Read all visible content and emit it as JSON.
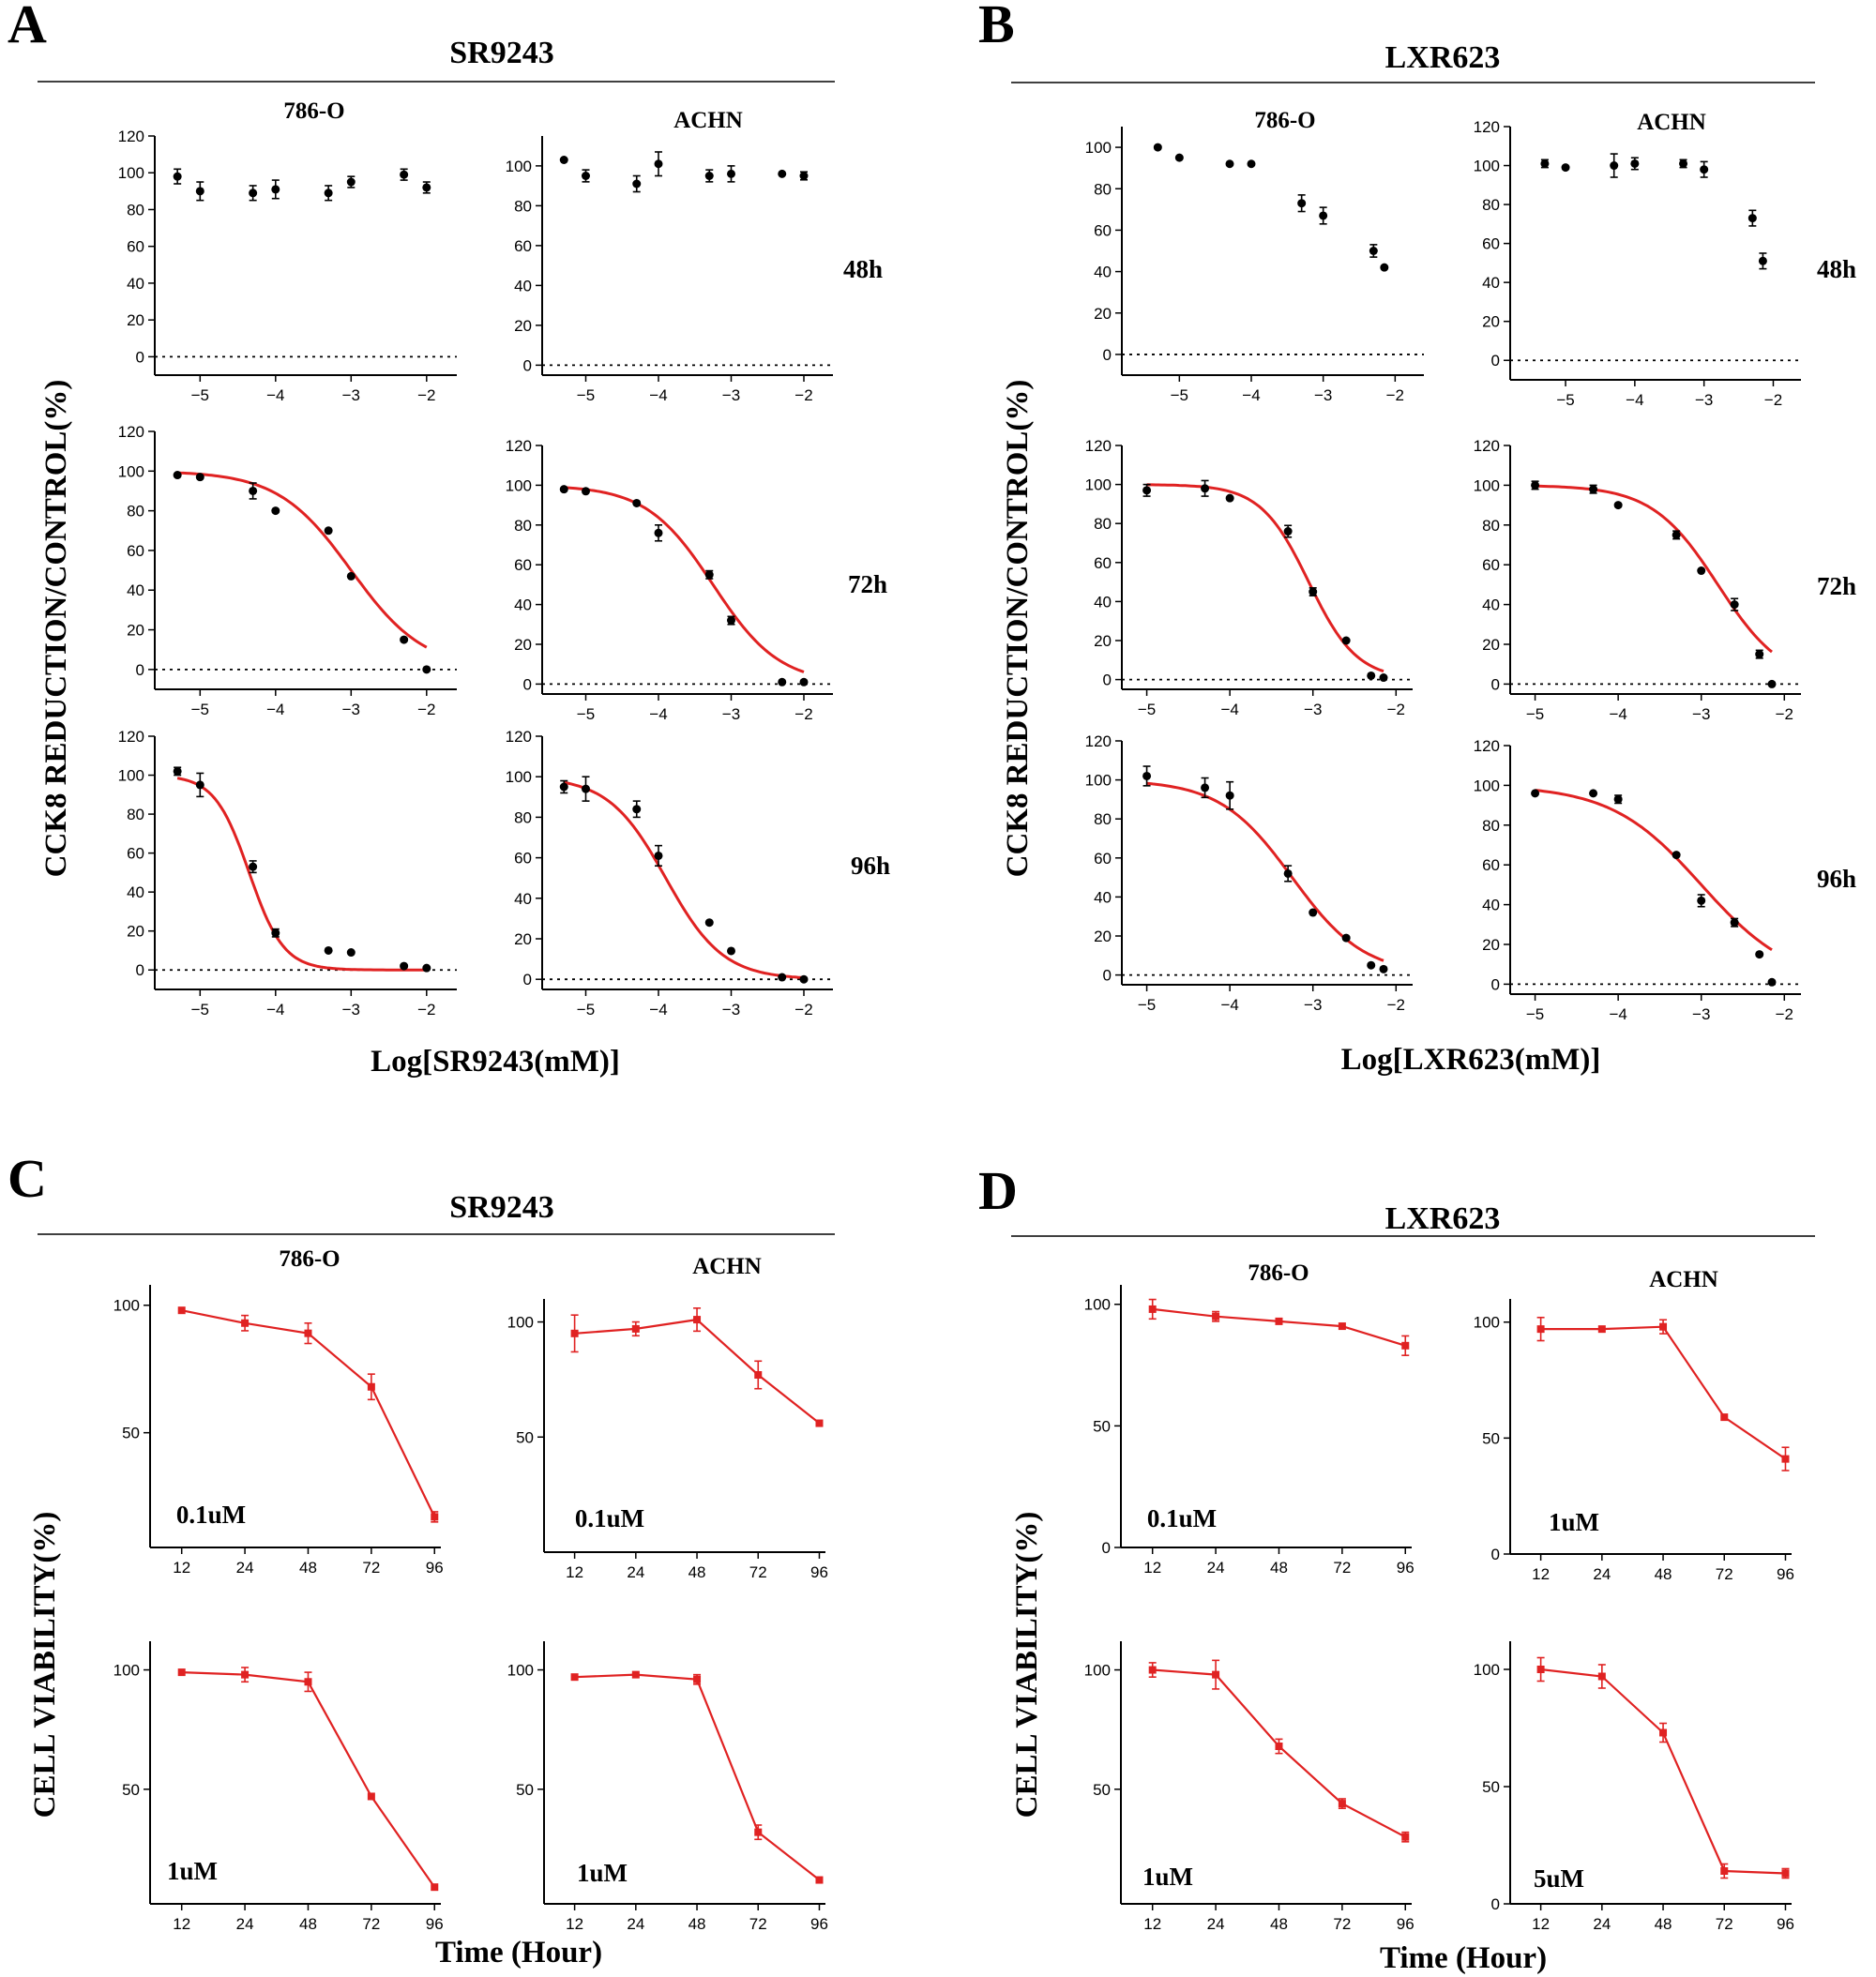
{
  "panels": [
    {
      "letter": "A",
      "title": "SR9243"
    },
    {
      "letter": "B",
      "title": "LXR623"
    },
    {
      "letter": "C",
      "title": "SR9243"
    },
    {
      "letter": "D",
      "title": "LXR623"
    }
  ],
  "y_axis_labels": {
    "A": "CCK8  REDUCTION/CONTROL(%)",
    "B": "CCK8  REDUCTION/CONTROL(%)",
    "C": "CELL VIABILITY(%)",
    "D": "CELL VIABILITY(%)"
  },
  "x_axis_labels": {
    "A": "Log[SR9243(mM)]",
    "B": "Log[LXR623(mM)]",
    "C": "Time (Hour)",
    "D": "Time (Hour)"
  },
  "chart_data": [
    {
      "panel": "A",
      "type": "scatter",
      "cell": "786-O",
      "time": "48h",
      "fit": false,
      "xlim": [
        -5.6,
        -1.6
      ],
      "ylim": [
        -10,
        120
      ],
      "yticks": [
        0,
        20,
        40,
        60,
        80,
        100,
        120
      ],
      "xticks": [
        "-5",
        "-4",
        "-3",
        "-2"
      ],
      "x": [
        -5.3,
        -5.0,
        -4.3,
        -4.0,
        -3.3,
        -3.0,
        -2.3,
        -2.0
      ],
      "y": [
        98,
        90,
        89,
        91,
        89,
        95,
        99,
        92
      ],
      "err": [
        4,
        5,
        4,
        5,
        4,
        3,
        3,
        3
      ]
    },
    {
      "panel": "A",
      "type": "scatter",
      "cell": "ACHN",
      "time": "",
      "fit": false,
      "xlim": [
        -5.6,
        -1.6
      ],
      "ylim": [
        -5,
        115
      ],
      "yticks": [
        0,
        20,
        40,
        60,
        80,
        100
      ],
      "xticks": [
        "-5",
        "-4",
        "-3",
        "-2"
      ],
      "x": [
        -5.3,
        -5.0,
        -4.3,
        -4.0,
        -3.3,
        -3.0,
        -2.3,
        -2.0
      ],
      "y": [
        103,
        95,
        91,
        101,
        95,
        96,
        96,
        95
      ],
      "err": [
        1,
        3,
        4,
        6,
        3,
        4,
        1,
        2
      ]
    },
    {
      "panel": "A",
      "type": "line",
      "cell": "",
      "time": "72h",
      "fit": true,
      "xlim": [
        -5.6,
        -1.6
      ],
      "ylim": [
        -10,
        120
      ],
      "yticks": [
        0,
        20,
        40,
        60,
        80,
        100,
        120
      ],
      "xticks": [
        "-5",
        "-4",
        "-3",
        "-2"
      ],
      "x": [
        -5.3,
        -5.0,
        -4.3,
        -4.0,
        -3.3,
        -3.0,
        -2.3,
        -2.0
      ],
      "y": [
        98,
        97,
        90,
        80,
        70,
        47,
        15,
        0
      ],
      "err": [
        1,
        1,
        4,
        1,
        1,
        1,
        1,
        1
      ],
      "curve": {
        "top": 100,
        "bottom": 0,
        "logIC50": -3.0,
        "hill": 0.9,
        "from": -5.3,
        "to": -2.0
      }
    },
    {
      "panel": "A",
      "type": "line",
      "cell": "",
      "time": "",
      "fit": true,
      "xlim": [
        -5.6,
        -1.6
      ],
      "ylim": [
        -5,
        120
      ],
      "yticks": [
        0,
        20,
        40,
        60,
        80,
        100,
        120
      ],
      "xticks": [
        "-5",
        "-4",
        "-3",
        "-2"
      ],
      "x": [
        -5.3,
        -5.0,
        -4.3,
        -4.0,
        -3.3,
        -3.0,
        -2.3,
        -2.0
      ],
      "y": [
        98,
        97,
        91,
        76,
        55,
        32,
        1,
        1
      ],
      "err": [
        1,
        1,
        1,
        4,
        2,
        2,
        1,
        1
      ],
      "curve": {
        "top": 100,
        "bottom": 0,
        "logIC50": -3.25,
        "hill": 0.95,
        "from": -5.3,
        "to": -2.0
      }
    },
    {
      "panel": "A",
      "type": "line",
      "cell": "",
      "time": "96h",
      "fit": true,
      "xlim": [
        -5.6,
        -1.6
      ],
      "ylim": [
        -10,
        120
      ],
      "yticks": [
        0,
        20,
        40,
        60,
        80,
        100,
        120
      ],
      "xticks": [
        "-5",
        "-4",
        "-3",
        "-2"
      ],
      "x": [
        -5.3,
        -5.0,
        -4.3,
        -4.0,
        -3.3,
        -3.0,
        -2.3,
        -2.0
      ],
      "y": [
        102,
        95,
        53,
        19,
        10,
        9,
        2,
        1
      ],
      "err": [
        2,
        6,
        3,
        2,
        1,
        1,
        1,
        1
      ],
      "curve": {
        "top": 100,
        "bottom": 0,
        "logIC50": -4.35,
        "hill": 1.9,
        "from": -5.3,
        "to": -2.0
      }
    },
    {
      "panel": "A",
      "type": "line",
      "cell": "",
      "time": "",
      "fit": true,
      "xlim": [
        -5.6,
        -1.6
      ],
      "ylim": [
        -5,
        120
      ],
      "yticks": [
        0,
        20,
        40,
        60,
        80,
        100,
        120
      ],
      "xticks": [
        "-5",
        "-4",
        "-3",
        "-2"
      ],
      "x": [
        -5.3,
        -5.0,
        -4.3,
        -4.0,
        -3.3,
        -3.0,
        -2.3,
        -2.0
      ],
      "y": [
        95,
        94,
        84,
        61,
        28,
        14,
        1,
        0
      ],
      "err": [
        3,
        6,
        4,
        5,
        1,
        1,
        1,
        1
      ],
      "curve": {
        "top": 100,
        "bottom": 0,
        "logIC50": -3.9,
        "hill": 1.1,
        "from": -5.3,
        "to": -2.0
      }
    },
    {
      "panel": "B",
      "type": "scatter",
      "cell": "786-O",
      "time": "48h",
      "fit": false,
      "xlim": [
        -5.8,
        -1.6
      ],
      "ylim": [
        -10,
        110
      ],
      "yticks": [
        0,
        20,
        40,
        60,
        80,
        100
      ],
      "xticks": [
        "-5",
        "-4",
        "-3",
        "-2"
      ],
      "x": [
        -5.3,
        -5.0,
        -4.3,
        -4.0,
        -3.3,
        -3.0,
        -2.3,
        -2.15
      ],
      "y": [
        100,
        95,
        92,
        92,
        73,
        67,
        50,
        42
      ],
      "err": [
        1,
        1,
        1,
        1,
        4,
        4,
        3,
        1
      ]
    },
    {
      "panel": "B",
      "type": "scatter",
      "cell": "ACHN",
      "time": "48h",
      "fit": false,
      "xlim": [
        -5.8,
        -1.6
      ],
      "ylim": [
        -10,
        120
      ],
      "yticks": [
        0,
        20,
        40,
        60,
        80,
        100,
        120
      ],
      "xticks": [
        "-5",
        "-4",
        "-3",
        "-2"
      ],
      "x": [
        -5.3,
        -5.0,
        -4.3,
        -4.0,
        -3.3,
        -3.0,
        -2.3,
        -2.15
      ],
      "y": [
        101,
        99,
        100,
        101,
        101,
        98,
        73,
        51
      ],
      "err": [
        2,
        1,
        6,
        3,
        2,
        4,
        4,
        4
      ]
    },
    {
      "panel": "B",
      "type": "line",
      "cell": "",
      "time": "",
      "fit": true,
      "xlim": [
        -5.3,
        -1.8
      ],
      "ylim": [
        -5,
        120
      ],
      "yticks": [
        0,
        20,
        40,
        60,
        80,
        100,
        120
      ],
      "xticks": [
        "-5",
        "-4",
        "-3",
        "-2"
      ],
      "x": [
        -5.0,
        -4.3,
        -4.0,
        -3.3,
        -3.0,
        -2.6,
        -2.3,
        -2.15
      ],
      "y": [
        97,
        98,
        93,
        76,
        45,
        20,
        2,
        1
      ],
      "err": [
        3,
        4,
        1,
        3,
        2,
        1,
        1,
        1
      ],
      "curve": {
        "top": 100,
        "bottom": 0,
        "logIC50": -3.05,
        "hill": 1.5,
        "from": -5.0,
        "to": -2.15
      }
    },
    {
      "panel": "B",
      "type": "line",
      "cell": "",
      "time": "72h",
      "fit": true,
      "xlim": [
        -5.3,
        -1.8
      ],
      "ylim": [
        -5,
        120
      ],
      "yticks": [
        0,
        20,
        40,
        60,
        80,
        100,
        120
      ],
      "xticks": [
        "-5",
        "-4",
        "-3",
        "-2"
      ],
      "x": [
        -5.0,
        -4.3,
        -4.0,
        -3.3,
        -3.0,
        -2.6,
        -2.3,
        -2.15
      ],
      "y": [
        100,
        98,
        90,
        75,
        57,
        40,
        15,
        0
      ],
      "err": [
        2,
        2,
        1,
        2,
        1,
        3,
        2,
        1
      ],
      "curve": {
        "top": 100,
        "bottom": 0,
        "logIC50": -2.8,
        "hill": 1.1,
        "from": -5.0,
        "to": -2.15
      }
    },
    {
      "panel": "B",
      "type": "line",
      "cell": "",
      "time": "",
      "fit": true,
      "xlim": [
        -5.3,
        -1.8
      ],
      "ylim": [
        -5,
        120
      ],
      "yticks": [
        0,
        20,
        40,
        60,
        80,
        100,
        120
      ],
      "xticks": [
        "-5",
        "-4",
        "-3",
        "-2"
      ],
      "x": [
        -5.0,
        -4.3,
        -4.0,
        -3.3,
        -3.0,
        -2.6,
        -2.3,
        -2.15
      ],
      "y": [
        102,
        96,
        92,
        52,
        32,
        19,
        5,
        3
      ],
      "err": [
        5,
        5,
        7,
        4,
        1,
        1,
        1,
        1
      ],
      "curve": {
        "top": 100,
        "bottom": 0,
        "logIC50": -3.25,
        "hill": 1.0,
        "from": -5.0,
        "to": -2.15
      }
    },
    {
      "panel": "B",
      "type": "line",
      "cell": "",
      "time": "96h",
      "fit": true,
      "xlim": [
        -5.3,
        -1.8
      ],
      "ylim": [
        -5,
        120
      ],
      "yticks": [
        0,
        20,
        40,
        60,
        80,
        100,
        120
      ],
      "xticks": [
        "-5",
        "-4",
        "-3",
        "-2"
      ],
      "x": [
        -5.0,
        -4.3,
        -4.0,
        -3.3,
        -3.0,
        -2.6,
        -2.3,
        -2.15
      ],
      "y": [
        96,
        96,
        93,
        65,
        42,
        31,
        15,
        1
      ],
      "err": [
        1,
        1,
        2,
        1,
        3,
        2,
        1,
        1
      ],
      "curve": {
        "top": 100,
        "bottom": 0,
        "logIC50": -3.0,
        "hill": 0.8,
        "from": -5.0,
        "to": -2.15
      }
    },
    {
      "panel": "C",
      "type": "line",
      "cell": "786-O",
      "conc": "0.1uM",
      "xlim": [
        0,
        4.6
      ],
      "ylim": [
        5,
        108
      ],
      "yticks": [
        50,
        100
      ],
      "xticks": [
        "12",
        "24",
        "48",
        "72",
        "96"
      ],
      "x": [
        0.5,
        1.5,
        2.5,
        3.5,
        4.5
      ],
      "y": [
        98,
        93,
        89,
        68,
        17
      ],
      "err": [
        1,
        3,
        4,
        5,
        2
      ]
    },
    {
      "panel": "C",
      "type": "line",
      "cell": "ACHN",
      "conc": "0.1uM",
      "xlim": [
        0,
        4.6
      ],
      "ylim": [
        0,
        110
      ],
      "yticks": [
        50,
        100
      ],
      "xticks": [
        "12",
        "24",
        "48",
        "72",
        "96"
      ],
      "x": [
        0.5,
        1.5,
        2.5,
        3.5,
        4.5
      ],
      "y": [
        95,
        97,
        101,
        77,
        56
      ],
      "err": [
        8,
        3,
        5,
        6,
        1
      ]
    },
    {
      "panel": "C",
      "type": "line",
      "cell": "",
      "conc": "1uM",
      "xlim": [
        0,
        4.6
      ],
      "ylim": [
        2,
        112
      ],
      "yticks": [
        50,
        100
      ],
      "xticks": [
        "12",
        "24",
        "48",
        "72",
        "96"
      ],
      "x": [
        0.5,
        1.5,
        2.5,
        3.5,
        4.5
      ],
      "y": [
        99,
        98,
        95,
        47,
        9
      ],
      "err": [
        1,
        3,
        4,
        1,
        1
      ]
    },
    {
      "panel": "C",
      "type": "line",
      "cell": "",
      "conc": "1uM",
      "xlim": [
        0,
        4.6
      ],
      "ylim": [
        2,
        112
      ],
      "yticks": [
        50,
        100
      ],
      "xticks": [
        "12",
        "24",
        "48",
        "72",
        "96"
      ],
      "x": [
        0.5,
        1.5,
        2.5,
        3.5,
        4.5
      ],
      "y": [
        97,
        98,
        96,
        32,
        12
      ],
      "err": [
        1,
        1,
        2,
        3,
        1
      ]
    },
    {
      "panel": "D",
      "type": "line",
      "cell": "786-O",
      "conc": "0.1uM",
      "xlim": [
        0,
        4.6
      ],
      "ylim": [
        0,
        108
      ],
      "yticks": [
        0,
        50,
        100
      ],
      "xticks": [
        "12",
        "24",
        "48",
        "72",
        "96"
      ],
      "x": [
        0.5,
        1.5,
        2.5,
        3.5,
        4.5
      ],
      "y": [
        98,
        95,
        93,
        91,
        83
      ],
      "err": [
        4,
        2,
        1,
        1,
        4
      ]
    },
    {
      "panel": "D",
      "type": "line",
      "cell": "ACHN",
      "conc": "1uM",
      "xlim": [
        0,
        4.6
      ],
      "ylim": [
        0,
        110
      ],
      "yticks": [
        0,
        50,
        100
      ],
      "xticks": [
        "12",
        "24",
        "48",
        "72",
        "96"
      ],
      "x": [
        0.5,
        1.5,
        2.5,
        3.5,
        4.5
      ],
      "y": [
        97,
        97,
        98,
        59,
        41
      ],
      "err": [
        5,
        1,
        3,
        1,
        5
      ]
    },
    {
      "panel": "D",
      "type": "line",
      "cell": "",
      "conc": "1uM",
      "xlim": [
        0,
        4.6
      ],
      "ylim": [
        2,
        112
      ],
      "yticks": [
        50,
        100
      ],
      "xticks": [
        "12",
        "24",
        "48",
        "72",
        "96"
      ],
      "x": [
        0.5,
        1.5,
        2.5,
        3.5,
        4.5
      ],
      "y": [
        100,
        98,
        68,
        44,
        30
      ],
      "err": [
        3,
        6,
        3,
        2,
        2
      ]
    },
    {
      "panel": "D",
      "type": "line",
      "cell": "",
      "conc": "5uM",
      "xlim": [
        0,
        4.6
      ],
      "ylim": [
        0,
        112
      ],
      "yticks": [
        0,
        50,
        100
      ],
      "xticks": [
        "12",
        "24",
        "48",
        "72",
        "96"
      ],
      "x": [
        0.5,
        1.5,
        2.5,
        3.5,
        4.5
      ],
      "y": [
        100,
        97,
        73,
        14,
        13
      ],
      "err": [
        5,
        5,
        4,
        3,
        2
      ]
    }
  ]
}
